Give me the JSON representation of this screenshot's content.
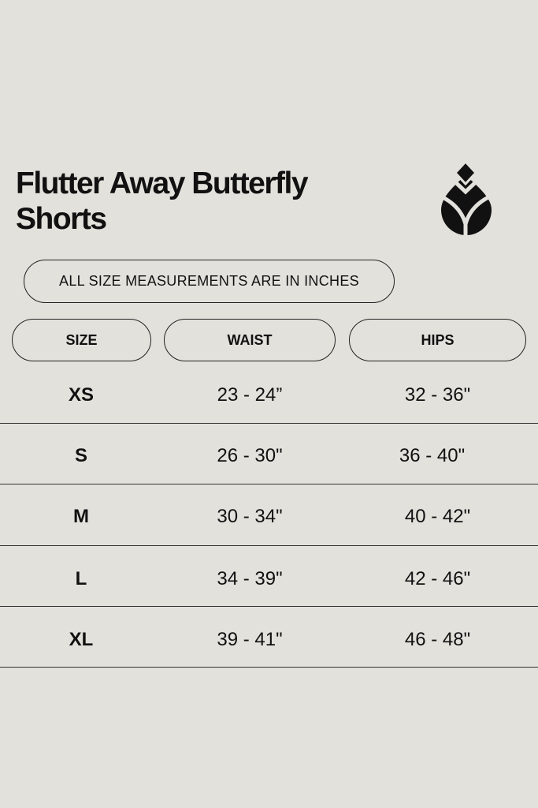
{
  "title": "Flutter Away Butterfly Shorts",
  "logo": "leaf-drop-logo",
  "note": "ALL SIZE MEASUREMENTS ARE IN INCHES",
  "headers": {
    "size": "SIZE",
    "waist": "WAIST",
    "hips": "HIPS"
  },
  "rows": [
    {
      "size": "XS",
      "waist": "23 - 24”",
      "hips": "32 - 36\""
    },
    {
      "size": "S",
      "waist": "26 - 30\"",
      "hips": "36 - 40\""
    },
    {
      "size": "M",
      "waist": "30 - 34\"",
      "hips": "40 - 42\""
    },
    {
      "size": "L",
      "waist": "34 - 39\"",
      "hips": "42 - 46\""
    },
    {
      "size": "XL",
      "waist": "39 - 41\"",
      "hips": "46 - 48\""
    }
  ],
  "colors": {
    "background": "#e3e1dc",
    "text": "#111111"
  }
}
